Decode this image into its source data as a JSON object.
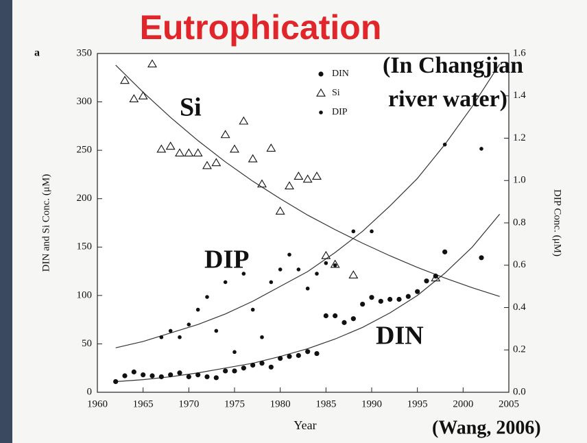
{
  "chart_data": {
    "type": "scatter",
    "title": "Eutrophication",
    "panel_label": "a",
    "xlabel": "Year",
    "ylabel": "DIN and Si Conc. (μM)",
    "y2label": "DIP Conc. (μM)",
    "annotations": [
      "(In Changjian",
      "river water)",
      "(Wang, 2006)",
      "Si",
      "DIP",
      "DIN"
    ],
    "xlim": [
      1960,
      2005
    ],
    "xticks": [
      1960,
      1965,
      1970,
      1975,
      1980,
      1985,
      1990,
      1995,
      2000,
      2005
    ],
    "ylim": [
      0,
      350
    ],
    "yticks": [
      0,
      50,
      100,
      150,
      200,
      250,
      300,
      350
    ],
    "y2lim": [
      0,
      1.6
    ],
    "y2ticks": [
      {
        "value": 0,
        "label": "0.0"
      },
      0.2,
      0.4,
      0.6,
      0.8,
      {
        "value": 1,
        "label": "1.0"
      },
      1.2,
      1.4,
      1.6
    ],
    "series": [
      {
        "name": "DIN",
        "color": "#111111",
        "marker": "circle",
        "axis": "y",
        "x": [
          1962,
          1963,
          1964,
          1965,
          1966,
          1967,
          1968,
          1969,
          1970,
          1971,
          1972,
          1973,
          1974,
          1975,
          1976,
          1977,
          1978,
          1979,
          1980,
          1981,
          1982,
          1983,
          1984,
          1985,
          1986,
          1987,
          1988,
          1989,
          1990,
          1991,
          1992,
          1993,
          1994,
          1995,
          1996,
          1997,
          1998,
          2002
        ],
        "values": [
          11,
          17,
          21,
          18,
          17,
          16,
          18,
          20,
          16,
          18,
          16,
          15,
          22,
          22,
          25,
          28,
          30,
          26,
          35,
          37,
          38,
          42,
          40,
          79,
          79,
          72,
          76,
          91,
          98,
          94,
          96,
          96,
          99,
          104,
          115,
          120,
          145,
          139
        ]
      },
      {
        "name": "Si",
        "color": "#111111",
        "marker": "triangle",
        "axis": "y",
        "x": [
          1963,
          1964,
          1965,
          1966,
          1967,
          1968,
          1969,
          1970,
          1971,
          1972,
          1973,
          1974,
          1975,
          1976,
          1977,
          1978,
          1979,
          1980,
          1981,
          1982,
          1983,
          1984,
          1985,
          1986,
          1988,
          1997
        ],
        "values": [
          322,
          303,
          306,
          339,
          251,
          254,
          247,
          247,
          247,
          234,
          237,
          266,
          251,
          280,
          241,
          215,
          252,
          187,
          213,
          223,
          220,
          223,
          141,
          132,
          121,
          118
        ]
      },
      {
        "name": "DIP",
        "color": "#111111",
        "marker": "dot",
        "axis": "y2",
        "x": [
          1967,
          1968,
          1969,
          1970,
          1971,
          1972,
          1973,
          1974,
          1975,
          1976,
          1977,
          1978,
          1979,
          1980,
          1981,
          1982,
          1983,
          1984,
          1985,
          1986,
          1988,
          1990,
          1998,
          2002
        ],
        "values": [
          0.26,
          0.29,
          0.26,
          0.32,
          0.39,
          0.45,
          0.29,
          0.52,
          0.19,
          0.56,
          0.39,
          0.26,
          0.52,
          0.58,
          0.65,
          0.58,
          0.49,
          0.56,
          0.61,
          0.6,
          0.76,
          0.76,
          1.17,
          1.15
        ]
      }
    ],
    "curves": [
      {
        "axis": "y",
        "x": [
          1962,
          1965,
          1968,
          1971,
          1974,
          1977,
          1980,
          1983,
          1986,
          1989,
          1992,
          1995,
          1998,
          2001,
          2004
        ],
        "values": [
          338,
          310,
          284,
          260,
          238,
          218,
          200,
          183,
          168,
          154,
          141,
          129,
          118,
          108,
          99
        ]
      },
      {
        "axis": "y2",
        "x": [
          1962,
          1965,
          1968,
          1971,
          1974,
          1977,
          1980,
          1983,
          1986,
          1989,
          1992,
          1995,
          1998,
          2001,
          2004
        ],
        "values": [
          0.21,
          0.24,
          0.28,
          0.32,
          0.37,
          0.43,
          0.5,
          0.57,
          0.66,
          0.76,
          0.88,
          1.01,
          1.17,
          1.35,
          1.55
        ]
      },
      {
        "axis": "y",
        "x": [
          1962,
          1965,
          1968,
          1971,
          1974,
          1977,
          1980,
          1983,
          1986,
          1989,
          1992,
          1995,
          1998,
          2001,
          2004
        ],
        "values": [
          11,
          13,
          16,
          20,
          25,
          30,
          37,
          45,
          55,
          67,
          82,
          100,
          123,
          150,
          184
        ]
      }
    ]
  }
}
